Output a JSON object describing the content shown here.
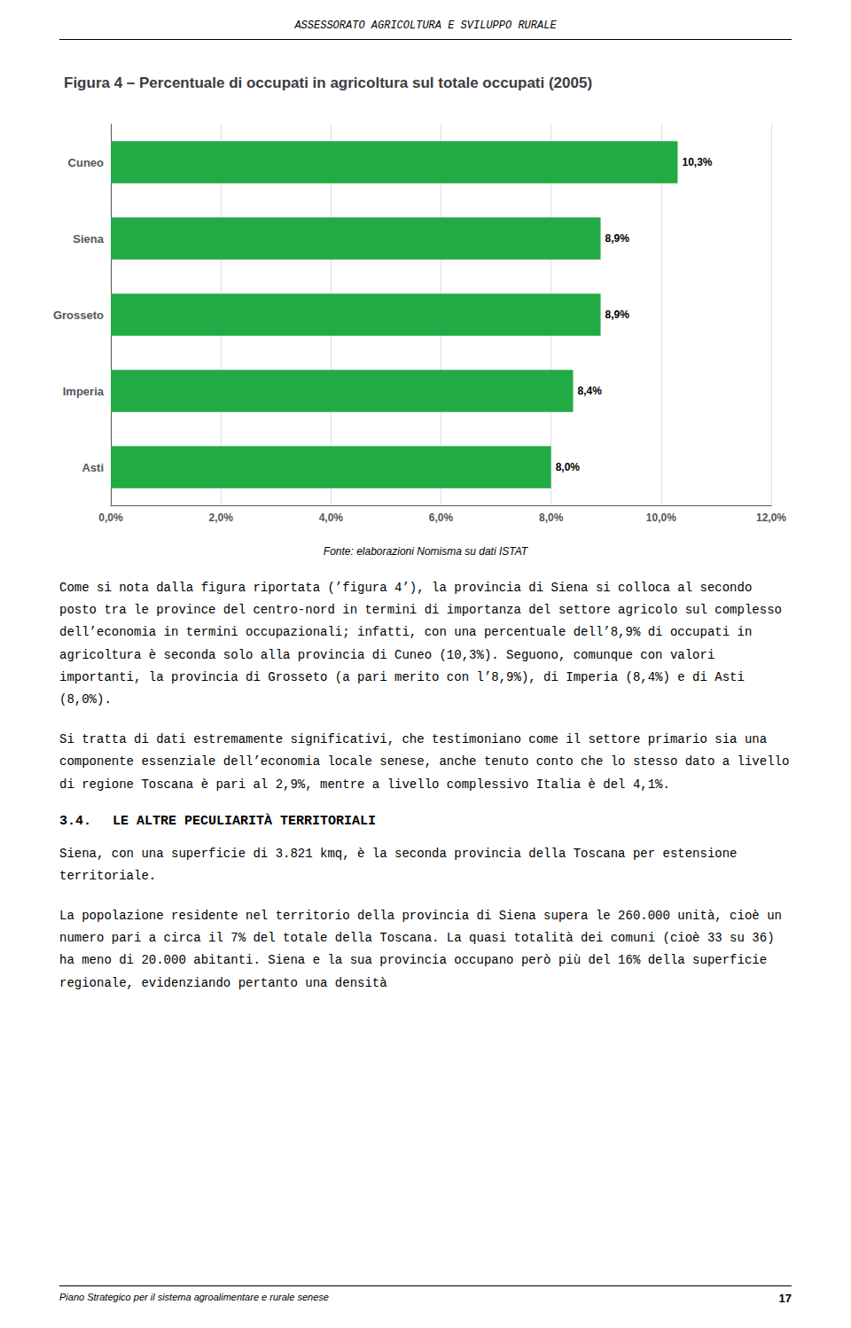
{
  "chart_data": {
    "type": "bar",
    "orientation": "horizontal",
    "title": "Figura 4 – Percentuale di occupati in agricoltura sul totale occupati (2005)",
    "categories": [
      "Asti",
      "Imperia",
      "Grosseto",
      "Siena",
      "Cuneo"
    ],
    "values": [
      8.0,
      8.4,
      8.9,
      8.9,
      10.3
    ],
    "value_labels": [
      "8,0%",
      "8,4%",
      "8,9%",
      "8,9%",
      "10,3%"
    ],
    "data_labels": true,
    "color": "#22aa44",
    "xlim": [
      0,
      12
    ],
    "xticks": [
      {
        "value": 0,
        "label": "0,0%"
      },
      {
        "value": 2,
        "label": "2,0%"
      },
      {
        "value": 4,
        "label": "4,0%"
      },
      {
        "value": 6,
        "label": "6,0%"
      },
      {
        "value": 8,
        "label": "8,0%"
      },
      {
        "value": 10,
        "label": "10,0%"
      },
      {
        "value": 12,
        "label": "12,0%"
      }
    ],
    "grid": true,
    "annotations": [
      "ASSESSORATO AGRICOLTURA E SVILUPPO RURALE",
      "Fonte: elaborazioni Nomisma su dati ISTAT",
      "Come si nota dalla figura riportata (’figura 4’), la provincia di Siena si colloca al secondo posto tra le province del centro-nord in termini di importanza del settore agricolo sul complesso dell’economia in termini occupazionali; infatti, con una percentuale dell’8,9% di occupati in agricoltura è seconda solo alla provincia di Cuneo (10,3%). Seguono, comunque con valori importanti, la provincia di Grosseto (a pari merito con l’8,9%), di Imperia (8,4%) e di Asti (8,0%).",
      "Si tratta di dati estremamente significativi, che testimoniano come il settore primario sia una componente essenziale dell’economia locale senese, anche tenuto conto che lo stesso dato a livello di regione Toscana è pari al 2,9%, mentre a livello complessivo Italia è del 4,1%.",
      "3.4.  LE ALTRE PECULIARITÀ TERRITORIALI",
      "Siena, con una superficie di 3.821 kmq, è la seconda provincia della Toscana per estensione territoriale.",
      "La popolazione residente nel territorio della provincia di Siena supera le 260.000 unità, cioè un numero pari a circa il 7% del totale della Toscana. La quasi totalità dei comuni (cioè 33 su 36) ha meno di 20.000 abitanti. Siena e la sua provincia occupano però più del 16% della superficie regionale, evidenziando pertanto una densità",
      "Piano Strategico per il sistema agroalimentare e rurale senese",
      "17"
    ]
  }
}
